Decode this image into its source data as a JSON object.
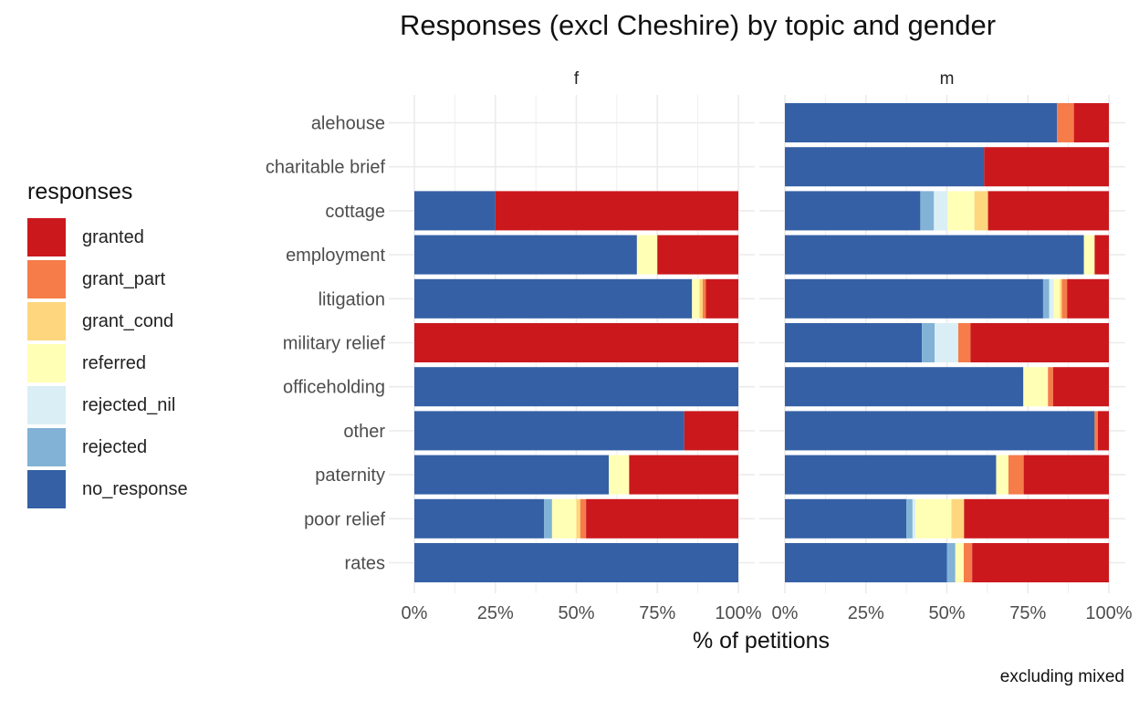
{
  "title": "Responses (excl Cheshire) by topic and gender",
  "caption": "excluding mixed",
  "legend": {
    "title": "responses",
    "items": [
      {
        "label": "granted",
        "color": "#cb181d"
      },
      {
        "label": "grant_part",
        "color": "#f67c4a"
      },
      {
        "label": "grant_cond",
        "color": "#fdd67e"
      },
      {
        "label": "referred",
        "color": "#ffffb5"
      },
      {
        "label": "rejected_nil",
        "color": "#daeef5"
      },
      {
        "label": "rejected",
        "color": "#82b2d6"
      },
      {
        "label": "no_response",
        "color": "#3560a6"
      }
    ]
  },
  "chart_data": {
    "type": "bar",
    "orientation": "horizontal",
    "stacked": true,
    "xlabel": "% of petitions",
    "ylabel": "",
    "xlim": [
      0,
      100
    ],
    "x_ticks": [
      "0%",
      "25%",
      "50%",
      "75%",
      "100%"
    ],
    "grid": true,
    "legend_position": "left",
    "categories": [
      "alehouse",
      "charitable brief",
      "cottage",
      "employment",
      "litigation",
      "military relief",
      "officeholding",
      "other",
      "paternity",
      "poor relief",
      "rates"
    ],
    "stack_order": [
      "no_response",
      "rejected",
      "rejected_nil",
      "referred",
      "grant_cond",
      "grant_part",
      "granted"
    ],
    "facets": [
      {
        "label": "f",
        "series": [
          {
            "name": "no_response",
            "values": [
              0,
              0,
              25,
              68.7,
              85.7,
              0,
              100,
              83.3,
              60,
              40,
              100
            ]
          },
          {
            "name": "rejected",
            "values": [
              0,
              0,
              0,
              0,
              0,
              0,
              0,
              0,
              0,
              2.5,
              0
            ]
          },
          {
            "name": "rejected_nil",
            "values": [
              0,
              0,
              0,
              0,
              0,
              0,
              0,
              0,
              0,
              0,
              0
            ]
          },
          {
            "name": "referred",
            "values": [
              0,
              0,
              0,
              6.3,
              2.3,
              0,
              0,
              0,
              6.3,
              7.5,
              0
            ]
          },
          {
            "name": "grant_cond",
            "values": [
              0,
              0,
              0,
              0,
              1.0,
              0,
              0,
              0,
              0,
              1.2,
              0
            ]
          },
          {
            "name": "grant_part",
            "values": [
              0,
              0,
              0,
              0,
              1.0,
              0,
              0,
              0,
              0,
              1.8,
              0
            ]
          },
          {
            "name": "granted",
            "values": [
              0,
              0,
              75,
              25,
              10,
              100,
              0,
              16.7,
              33.7,
              47,
              0
            ]
          }
        ]
      },
      {
        "label": "m",
        "series": [
          {
            "name": "no_response",
            "values": [
              84,
              61.5,
              41.8,
              92.3,
              79.7,
              42.3,
              73.6,
              95.6,
              65.2,
              37.5,
              50
            ]
          },
          {
            "name": "rejected",
            "values": [
              0,
              0,
              4.2,
              0,
              1.9,
              3.9,
              0,
              0,
              0,
              1.9,
              2.6
            ]
          },
          {
            "name": "rejected_nil",
            "values": [
              0,
              0,
              4.2,
              0,
              1.4,
              7.3,
              0,
              0,
              0,
              0.9,
              0
            ]
          },
          {
            "name": "referred",
            "values": [
              0,
              0,
              8.3,
              3.3,
              1.9,
              0,
              7.6,
              0,
              3.8,
              11.1,
              2.6
            ]
          },
          {
            "name": "grant_cond",
            "values": [
              0,
              0,
              4.2,
              0,
              0.6,
              0,
              0,
              0,
              0,
              3.9,
              0
            ]
          },
          {
            "name": "grant_part",
            "values": [
              5.2,
              0,
              0,
              0,
              1.6,
              3.8,
              1.6,
              1.0,
              4.7,
              0,
              2.6
            ]
          },
          {
            "name": "granted",
            "values": [
              10.8,
              38.5,
              37.3,
              4.4,
              12.9,
              42.7,
              17.2,
              3.4,
              26.3,
              44.7,
              42.2
            ]
          }
        ]
      }
    ]
  }
}
